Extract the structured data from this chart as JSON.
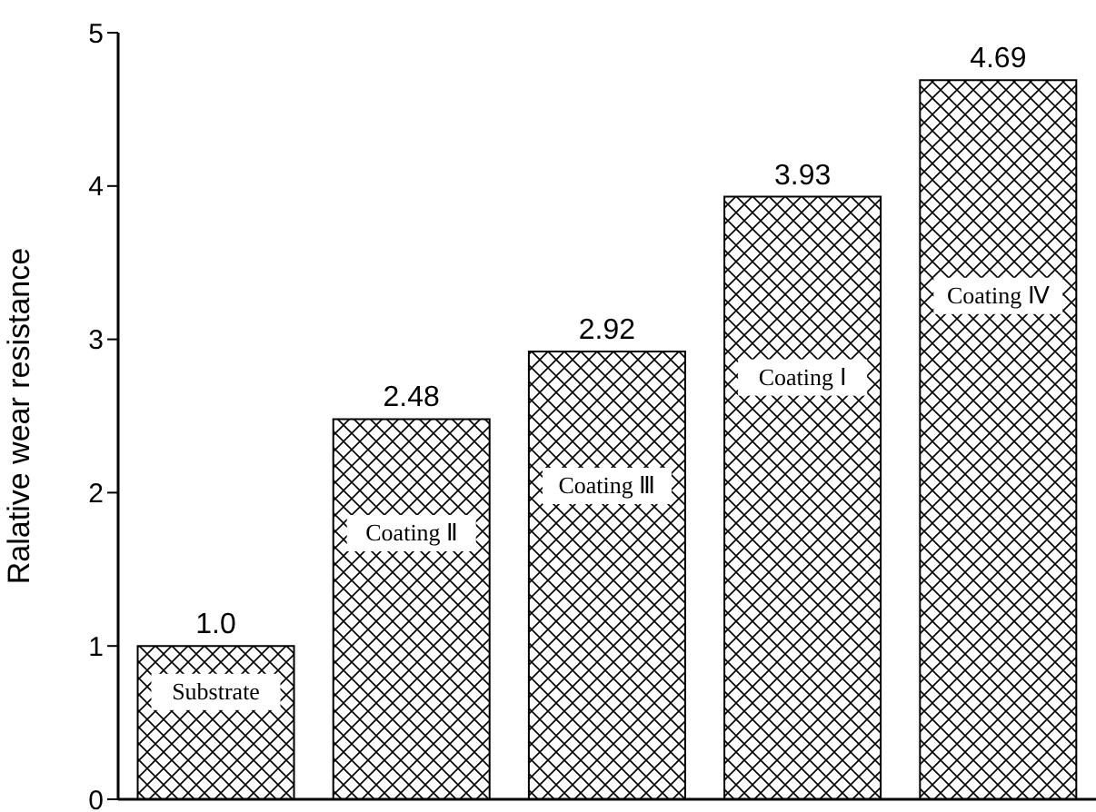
{
  "chart_data": {
    "type": "bar",
    "ylabel": "Ralative wear resistance",
    "categories": [
      "Substrate",
      "Coating Ⅱ",
      "Coating Ⅲ",
      "Coating Ⅰ",
      "Coating Ⅳ"
    ],
    "values": [
      1.0,
      2.48,
      2.92,
      3.93,
      4.69
    ],
    "value_labels": [
      "1.0",
      "2.48",
      "2.92",
      "3.93",
      "4.69"
    ],
    "color": "#000000",
    "ylim": [
      0,
      5
    ],
    "yticks": [
      0,
      1,
      2,
      3,
      4,
      5
    ],
    "grid": false
  }
}
